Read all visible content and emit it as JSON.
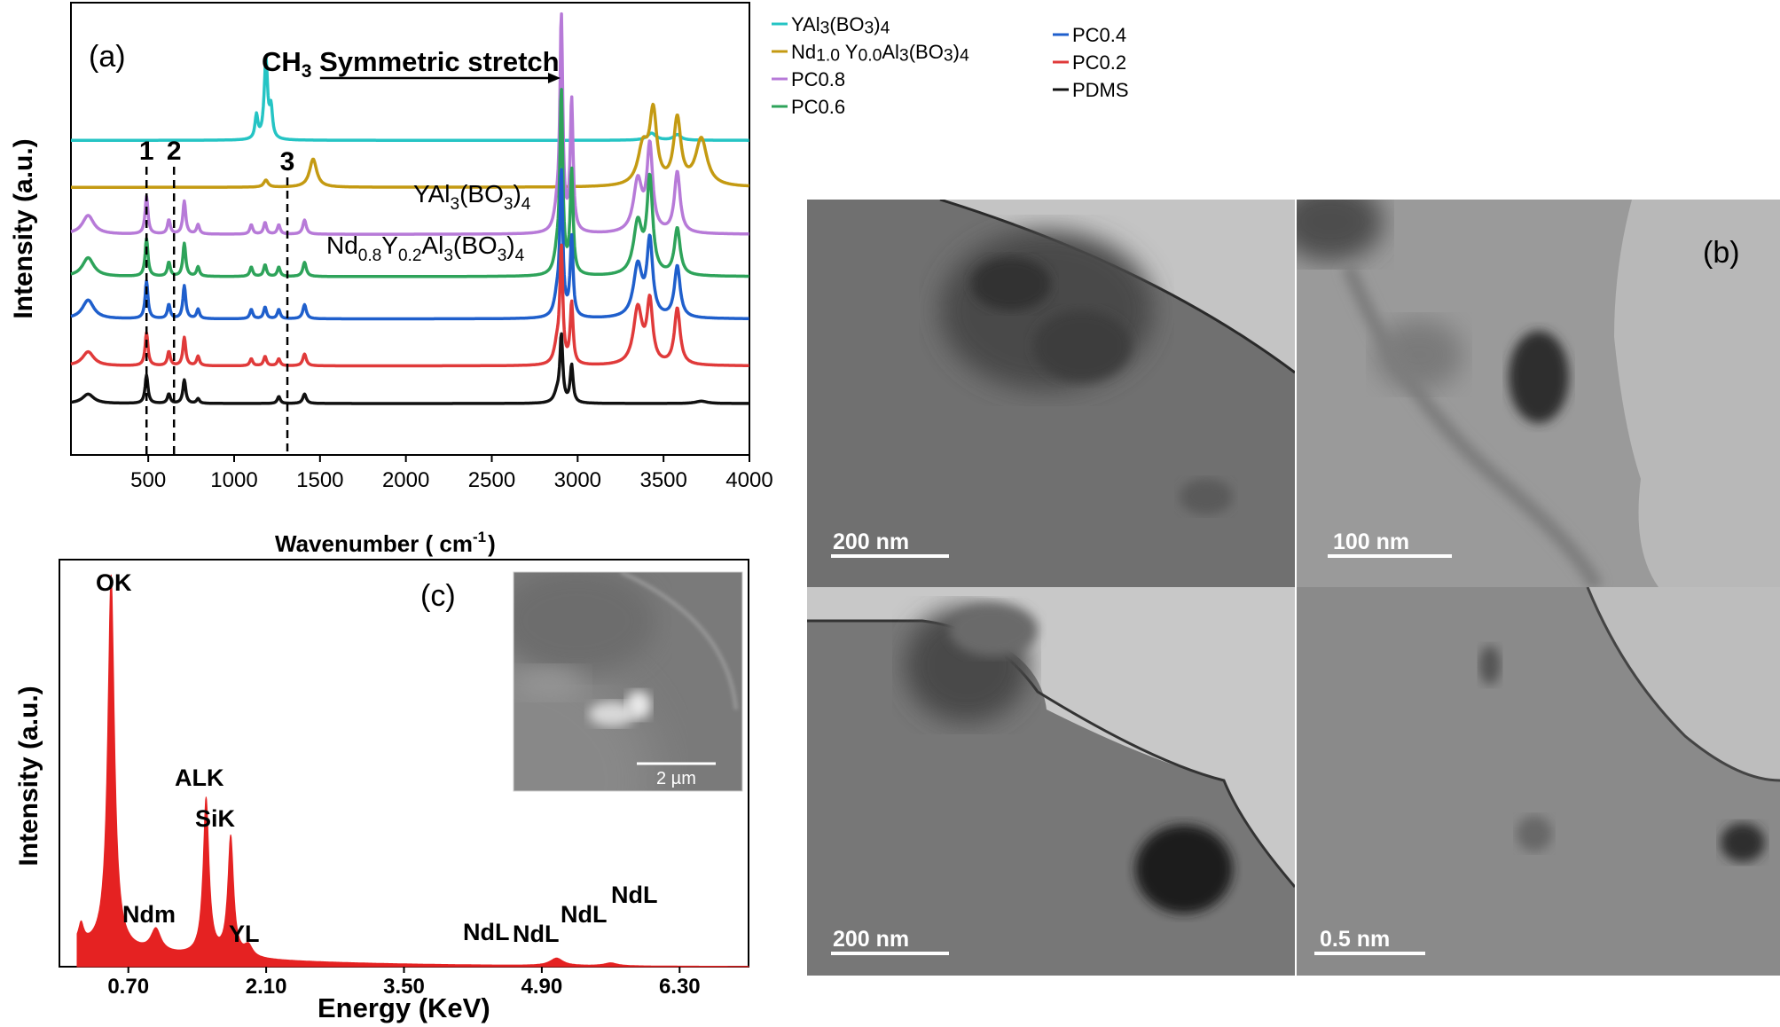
{
  "chart_data": [
    {
      "panel": "(a)",
      "type": "line",
      "xlabel": "Wavenumber ( cm",
      "xlabel_sup": "-1",
      "xlabel_end": ")",
      "ylabel": "Intensity (a.u.)",
      "xlim": [
        50,
        4000
      ],
      "xticks": [
        "500",
        "1000",
        "1500",
        "2000",
        "2500",
        "3000",
        "3500",
        "4000"
      ],
      "annotation": {
        "pre": "CH",
        "sub": "3",
        "post": " Symmetric stretch",
        "arrow_from_x": 1500,
        "arrow_to_x": 2900
      },
      "markers": [
        {
          "label": "1",
          "x": 490
        },
        {
          "label": "2",
          "x": 650
        },
        {
          "label": "3",
          "x": 1310
        }
      ],
      "curve_labels": [
        {
          "parts": [
            [
              "YAl",
              ""
            ],
            [
              "3",
              "sub"
            ],
            [
              "(BO",
              ""
            ],
            [
              "3",
              "sub"
            ],
            [
              ")",
              ""
            ],
            [
              "4",
              "sub"
            ]
          ]
        },
        {
          "parts": [
            [
              "Nd",
              ""
            ],
            [
              "0.8",
              "sub"
            ],
            [
              "Y",
              ""
            ],
            [
              "0.2",
              "sub"
            ],
            [
              "Al",
              ""
            ],
            [
              "3",
              "sub"
            ],
            [
              "(BO",
              ""
            ],
            [
              "3",
              "sub"
            ],
            [
              ")",
              ""
            ],
            [
              "4",
              "sub"
            ]
          ]
        }
      ],
      "legend": [
        {
          "name": "YAl3(BO3)4",
          "parts": [
            [
              "YAl",
              ""
            ],
            [
              "3",
              "small"
            ],
            [
              "(BO",
              ""
            ],
            [
              "3",
              "small"
            ],
            [
              ")",
              ""
            ],
            [
              "4",
              "small"
            ]
          ],
          "color": "#25c4c4"
        },
        {
          "name": "Nd1.0 Y0.0Al3(BO3)4",
          "parts": [
            [
              "Nd",
              ""
            ],
            [
              "1.0",
              "small"
            ],
            [
              " Y",
              ""
            ],
            [
              "0.0",
              "small"
            ],
            [
              "Al",
              ""
            ],
            [
              "3",
              "small"
            ],
            [
              "(BO",
              ""
            ],
            [
              "3",
              "small"
            ],
            [
              ")",
              ""
            ],
            [
              "4",
              "small"
            ]
          ],
          "color": "#c49a12"
        },
        {
          "name": "PC0.8",
          "parts": [
            [
              "PC0.8",
              ""
            ]
          ],
          "color": "#b77ad8"
        },
        {
          "name": "PC0.6",
          "parts": [
            [
              "PC0.6",
              ""
            ]
          ],
          "color": "#2ea35a"
        },
        {
          "name": "PC0.4",
          "parts": [
            [
              "PC0.4",
              ""
            ]
          ],
          "color": "#1f5fcc"
        },
        {
          "name": "PC0.2",
          "parts": [
            [
              "PC0.2",
              ""
            ]
          ],
          "color": "#e03a3a"
        },
        {
          "name": "PDMS",
          "parts": [
            [
              "PDMS",
              ""
            ]
          ],
          "color": "#111111"
        }
      ],
      "series": [
        {
          "name": "YAl3(BO3)4",
          "baseline": 6.6,
          "peaks": [
            [
              1130,
              0.5,
              10
            ],
            [
              1185,
              1.7,
              12
            ],
            [
              1215,
              0.6,
              10
            ],
            [
              3430,
              0.15,
              30
            ],
            [
              3580,
              0.12,
              25
            ]
          ]
        },
        {
          "name": "Nd1.0 Y0.0Al3(BO3)4",
          "baseline": 5.6,
          "peaks": [
            [
              1185,
              0.15,
              15
            ],
            [
              1460,
              0.6,
              25
            ],
            [
              3380,
              0.8,
              35
            ],
            [
              3440,
              1.5,
              25
            ],
            [
              3580,
              1.4,
              25
            ],
            [
              3720,
              1.0,
              40
            ]
          ]
        },
        {
          "name": "PC0.8",
          "baseline": 4.6,
          "peaks": [
            [
              150,
              0.4,
              40
            ],
            [
              490,
              0.8,
              10
            ],
            [
              620,
              0.3,
              10
            ],
            [
              710,
              0.7,
              10
            ],
            [
              790,
              0.2,
              10
            ],
            [
              1100,
              0.2,
              10
            ],
            [
              1180,
              0.25,
              10
            ],
            [
              1260,
              0.2,
              10
            ],
            [
              1410,
              0.3,
              12
            ],
            [
              2880,
              0.4,
              20
            ],
            [
              2905,
              4.5,
              10
            ],
            [
              2965,
              2.8,
              10
            ],
            [
              3350,
              1.1,
              30
            ],
            [
              3420,
              1.8,
              20
            ],
            [
              3580,
              1.3,
              20
            ]
          ]
        },
        {
          "name": "PC0.6",
          "baseline": 3.7,
          "peaks": [
            [
              150,
              0.4,
              40
            ],
            [
              490,
              0.8,
              10
            ],
            [
              620,
              0.3,
              10
            ],
            [
              710,
              0.7,
              10
            ],
            [
              790,
              0.2,
              10
            ],
            [
              1100,
              0.2,
              10
            ],
            [
              1180,
              0.25,
              10
            ],
            [
              1260,
              0.2,
              10
            ],
            [
              1410,
              0.3,
              12
            ],
            [
              2880,
              0.4,
              20
            ],
            [
              2905,
              3.8,
              10
            ],
            [
              2965,
              2.2,
              10
            ],
            [
              3350,
              1.1,
              30
            ],
            [
              3420,
              2.0,
              20
            ],
            [
              3580,
              1.0,
              20
            ]
          ]
        },
        {
          "name": "PC0.4",
          "baseline": 2.8,
          "peaks": [
            [
              150,
              0.4,
              40
            ],
            [
              490,
              0.8,
              10
            ],
            [
              620,
              0.3,
              10
            ],
            [
              710,
              0.7,
              10
            ],
            [
              790,
              0.2,
              10
            ],
            [
              1100,
              0.2,
              10
            ],
            [
              1180,
              0.25,
              10
            ],
            [
              1260,
              0.2,
              10
            ],
            [
              1410,
              0.3,
              12
            ],
            [
              2880,
              0.4,
              20
            ],
            [
              2905,
              3.0,
              10
            ],
            [
              2965,
              1.7,
              10
            ],
            [
              3350,
              1.1,
              30
            ],
            [
              3420,
              1.6,
              20
            ],
            [
              3580,
              1.1,
              20
            ]
          ]
        },
        {
          "name": "PC0.2",
          "baseline": 1.8,
          "peaks": [
            [
              150,
              0.3,
              40
            ],
            [
              490,
              0.7,
              10
            ],
            [
              620,
              0.3,
              10
            ],
            [
              710,
              0.6,
              10
            ],
            [
              790,
              0.2,
              10
            ],
            [
              1100,
              0.15,
              10
            ],
            [
              1180,
              0.2,
              10
            ],
            [
              1260,
              0.15,
              10
            ],
            [
              1410,
              0.25,
              12
            ],
            [
              2880,
              0.4,
              20
            ],
            [
              2905,
              2.4,
              10
            ],
            [
              2965,
              1.3,
              10
            ],
            [
              3350,
              1.2,
              30
            ],
            [
              3420,
              1.3,
              20
            ],
            [
              3580,
              1.2,
              20
            ]
          ]
        },
        {
          "name": "PDMS",
          "baseline": 1.0,
          "peaks": [
            [
              150,
              0.2,
              40
            ],
            [
              490,
              0.6,
              10
            ],
            [
              620,
              0.2,
              10
            ],
            [
              710,
              0.5,
              10
            ],
            [
              790,
              0.1,
              10
            ],
            [
              1260,
              0.15,
              10
            ],
            [
              1410,
              0.2,
              12
            ],
            [
              2880,
              0.2,
              20
            ],
            [
              2905,
              1.4,
              10
            ],
            [
              2965,
              0.8,
              10
            ],
            [
              3720,
              0.05,
              40
            ]
          ]
        }
      ]
    },
    {
      "panel": "(c)",
      "type": "area",
      "xlabel": "Energy (KeV)",
      "ylabel": "Intensity (a.u.)",
      "xlim": [
        0,
        7.0
      ],
      "xticks": [
        "0.70",
        "2.10",
        "3.50",
        "4.90",
        "6.30"
      ],
      "color": "#e52222",
      "peak_labels": [
        "OK",
        "Ndm",
        "ALK",
        "SiK",
        "YL",
        "NdL",
        "NdL",
        "NdL",
        "NdL"
      ],
      "peaks": [
        [
          0.22,
          0.05,
          0.03
        ],
        [
          0.525,
          1.0,
          0.04
        ],
        [
          0.98,
          0.06,
          0.06
        ],
        [
          1.49,
          0.42,
          0.035
        ],
        [
          1.74,
          0.32,
          0.035
        ],
        [
          1.92,
          0.03,
          0.05
        ],
        [
          5.05,
          0.02,
          0.08
        ],
        [
          5.6,
          0.008,
          0.08
        ]
      ],
      "inset_scale": "2 µm"
    }
  ],
  "tem": {
    "panel_label": "(b)",
    "scale_bars": [
      "200 nm",
      "100 nm",
      "200 nm",
      "0.5 nm"
    ]
  }
}
